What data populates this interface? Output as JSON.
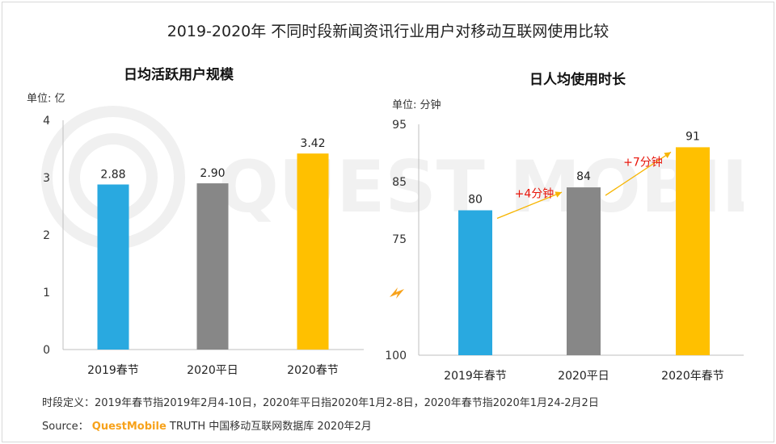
{
  "title": "2019-2020年 不同时段新闻资讯行业用户对移动互联网使用比较",
  "watermark": "QUEST MOBILE",
  "chart_data": [
    {
      "type": "bar",
      "title": "日均活跃用户规模",
      "unit": "单位: 亿",
      "categories": [
        "2019春节",
        "2020平日",
        "2020春节"
      ],
      "values": [
        2.88,
        2.9,
        3.42
      ],
      "value_labels": [
        "2.88",
        "2.90",
        "3.42"
      ],
      "colors": [
        "#29a9e0",
        "#878787",
        "#ffc000"
      ],
      "ylim": [
        0,
        4
      ],
      "yticks": [
        "4",
        "3",
        "2",
        "1",
        "0"
      ]
    },
    {
      "type": "bar",
      "title": "日人均使用时长",
      "unit": "单位: 分钟",
      "categories": [
        "2019年春节",
        "2020平日",
        "2020年春节"
      ],
      "values": [
        80,
        84,
        91
      ],
      "value_labels": [
        "80",
        "84",
        "91"
      ],
      "colors": [
        "#29a9e0",
        "#878787",
        "#ffc000"
      ],
      "axis_break": true,
      "ylim": [
        65,
        95
      ],
      "yticks": [
        "95",
        "85",
        "75",
        "100"
      ],
      "annotations": [
        "+4分钟",
        "+7分钟"
      ]
    }
  ],
  "footnote": {
    "definition": "时段定义：2019年春节指2019年2月4-10日，2020年平日指2020年1月2-8日，2020年春节指2020年1月24-2月2日",
    "source_label": "Source：",
    "source_brand": "QuestMobile",
    "source_rest": " TRUTH 中国移动互联网数据库 2020年2月"
  }
}
